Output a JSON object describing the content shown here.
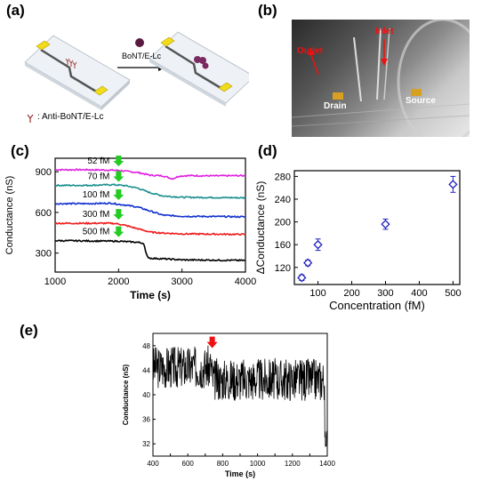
{
  "panels": {
    "a": {
      "label": "(a)",
      "arrow_label": "BoNT/E-Lc",
      "legend_text": "Anti-BoNT/E-Lc"
    },
    "b": {
      "label": "(b)",
      "outlet": "Outlet",
      "inlet": "Inlet",
      "drain": "Drain",
      "source": "Source"
    },
    "c": {
      "label": "(c)"
    },
    "d": {
      "label": "(d)"
    },
    "e": {
      "label": "(e)"
    }
  },
  "colors": {
    "magenta": "#e020e0",
    "teal": "#1a8f8f",
    "blue": "#1030d0",
    "red": "#ee1c1c",
    "black": "#000000",
    "green_arrow": "#22cc22",
    "marker_blue": "#2020c0",
    "red_arrow": "#ee1111"
  },
  "chart_data": [
    {
      "id": "c",
      "type": "line",
      "xlabel": "Time (s)",
      "ylabel": "Conductance (nS)",
      "xlim": [
        1000,
        4000
      ],
      "ylim": [
        160,
        1000
      ],
      "xticks": [
        1000,
        2000,
        3000,
        4000
      ],
      "yticks": [
        300,
        600,
        900
      ],
      "series": [
        {
          "name": "52 fM",
          "color": "#e020e0",
          "x": [
            1000,
            1500,
            1900,
            2000,
            2100,
            2300,
            2500,
            2700,
            2850,
            2950,
            3100,
            3500,
            4000
          ],
          "y": [
            915,
            915,
            912,
            910,
            905,
            895,
            875,
            870,
            848,
            868,
            872,
            870,
            872
          ]
        },
        {
          "name": "70 fM",
          "color": "#1a8f8f",
          "x": [
            1000,
            1500,
            1900,
            2000,
            2100,
            2300,
            2500,
            2700,
            3000,
            3500,
            4000
          ],
          "y": [
            800,
            800,
            805,
            802,
            798,
            780,
            745,
            722,
            712,
            710,
            708
          ]
        },
        {
          "name": "100 fM",
          "color": "#1030d0",
          "x": [
            1000,
            1500,
            1900,
            2000,
            2100,
            2300,
            2500,
            2700,
            3000,
            3500,
            4000
          ],
          "y": [
            665,
            665,
            668,
            660,
            655,
            640,
            610,
            580,
            572,
            570,
            568
          ]
        },
        {
          "name": "300 fM",
          "color": "#ee1c1c",
          "x": [
            1000,
            1500,
            1900,
            2000,
            2100,
            2300,
            2500,
            2700,
            3000,
            3500,
            4000
          ],
          "y": [
            520,
            520,
            520,
            515,
            505,
            480,
            455,
            448,
            442,
            440,
            438
          ]
        },
        {
          "name": "500 fM",
          "color": "#000000",
          "x": [
            1000,
            1500,
            1900,
            2000,
            2100,
            2300,
            2400,
            2420,
            2450,
            2500,
            2700,
            3000,
            3500,
            4000
          ],
          "y": [
            392,
            390,
            388,
            388,
            385,
            380,
            372,
            320,
            275,
            262,
            258,
            250,
            248,
            246
          ]
        }
      ],
      "annotations": [
        {
          "text": "52 fM",
          "y": 915
        },
        {
          "text": "70 fM",
          "y": 800
        },
        {
          "text": "100 fM",
          "y": 665
        },
        {
          "text": "300 fM",
          "y": 520
        },
        {
          "text": "500 fM",
          "y": 392
        }
      ],
      "injection_time": 2000
    },
    {
      "id": "d",
      "type": "scatter",
      "xlabel": "Concentration (fM)",
      "ylabel": "ΔConductance (nS)",
      "xlim": [
        30,
        520
      ],
      "ylim": [
        90,
        290
      ],
      "xticks": [
        100,
        200,
        300,
        400,
        500
      ],
      "yticks": [
        120,
        160,
        200,
        240,
        280
      ],
      "points": [
        {
          "x": 52,
          "y": 102,
          "err": 5
        },
        {
          "x": 70,
          "y": 128,
          "err": 5
        },
        {
          "x": 100,
          "y": 160,
          "err": 10
        },
        {
          "x": 300,
          "y": 196,
          "err": 9
        },
        {
          "x": 500,
          "y": 266,
          "err": 14
        }
      ]
    },
    {
      "id": "e",
      "type": "line",
      "xlabel": "Time (s)",
      "ylabel": "Conductance (nS)",
      "xlim": [
        400,
        1400
      ],
      "ylim": [
        30,
        50
      ],
      "xticks": [
        400,
        500,
        600,
        700,
        800,
        900,
        1000,
        1100,
        1200,
        1300,
        1400
      ],
      "yticks": [
        32,
        36,
        40,
        44,
        48
      ],
      "injection_time": 740,
      "trace_mean_before": 44.5,
      "trace_mean_after": 42.5
    }
  ]
}
